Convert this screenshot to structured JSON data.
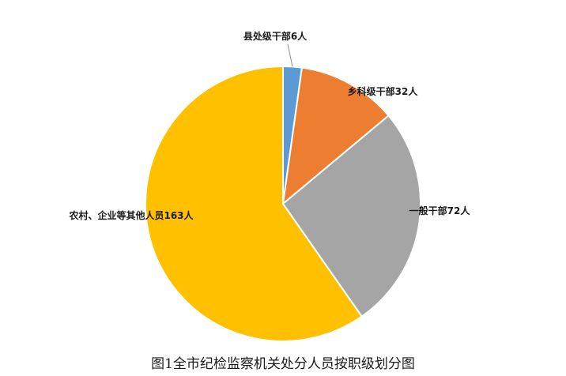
{
  "chart_data": {
    "type": "pie",
    "title": "图1全市纪检监察机关处分人员按职级划分图",
    "slices": [
      {
        "label": "县处级干部6人",
        "value": 6,
        "color": "#5B9BD5"
      },
      {
        "label": "乡科级干部32人",
        "value": 32,
        "color": "#ED7D31"
      },
      {
        "label": "一般干部72人",
        "value": 72,
        "color": "#A5A5A5"
      },
      {
        "label": "农村、企业等其他人员163人",
        "value": 163,
        "color": "#FFC000"
      }
    ],
    "legend": "none",
    "start_angle": "12 o'clock, clockwise"
  }
}
